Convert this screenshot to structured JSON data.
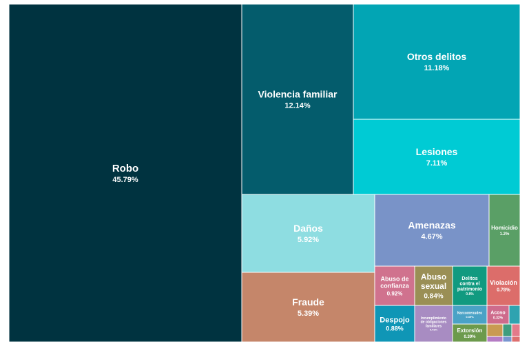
{
  "chart_data": {
    "type": "treemap",
    "title": "",
    "unit": "%",
    "items": [
      {
        "name": "Robo",
        "label": "45.79%",
        "value": 45.79,
        "color": "#003340"
      },
      {
        "name": "Violencia familiar",
        "label": "12.14%",
        "value": 12.14,
        "color": "#045c6c"
      },
      {
        "name": "Otros delitos",
        "label": "11.18%",
        "value": 11.18,
        "color": "#02a5b4"
      },
      {
        "name": "Lesiones",
        "label": "7.11%",
        "value": 7.11,
        "color": "#00cbd4"
      },
      {
        "name": "Daños",
        "label": "5.92%",
        "value": 5.92,
        "color": "#8edde1"
      },
      {
        "name": "Fraude",
        "label": "5.39%",
        "value": 5.39,
        "color": "#c5866a"
      },
      {
        "name": "Amenazas",
        "label": "4.67%",
        "value": 4.67,
        "color": "#7993c8"
      },
      {
        "name": "Homicidio",
        "label": "1.2%",
        "value": 1.2,
        "color": "#5a9f66"
      },
      {
        "name": "Abuso de confianza",
        "label": "0.92%",
        "value": 0.92,
        "color": "#d0728e"
      },
      {
        "name": "Abuso sexual",
        "label": "0.84%",
        "value": 0.84,
        "color": "#9a8f55"
      },
      {
        "name": "Delitos contra el patrimonio",
        "label": "0.8%",
        "value": 0.8,
        "color": "#119a80"
      },
      {
        "name": "Violación",
        "label": "0.78%",
        "value": 0.78,
        "color": "#dc6d6a"
      },
      {
        "name": "Despojo",
        "label": "0.88%",
        "value": 0.88,
        "color": "#0f96b6"
      },
      {
        "name": "Incumplimiento de obligaciones familiares",
        "label": "0.43%",
        "value": 0.43,
        "color": "#a88cc2"
      },
      {
        "name": "Narcomenudeo",
        "label": "0.39%",
        "value": 0.39,
        "color": "#4aa2c6"
      },
      {
        "name": "Acoso",
        "label": "0.32%",
        "value": 0.32,
        "color": "#ce6b8c"
      },
      {
        "name": "Extorsión",
        "label": "0.39%",
        "value": 0.39,
        "color": "#6c9a4c"
      },
      {
        "name": "",
        "label": "",
        "value": 0.12,
        "color": "#2fa3b0"
      },
      {
        "name": "",
        "label": "",
        "value": 0.1,
        "color": "#e37a8a"
      },
      {
        "name": "",
        "label": "",
        "value": 0.1,
        "color": "#c99a52"
      },
      {
        "name": "",
        "label": "",
        "value": 0.08,
        "color": "#3f9d7e"
      },
      {
        "name": "",
        "label": "",
        "value": 0.06,
        "color": "#b57cc4"
      },
      {
        "name": "",
        "label": "",
        "value": 0.05,
        "color": "#7896d0"
      },
      {
        "name": "",
        "label": "",
        "value": 0.04,
        "color": "#de6f6f"
      }
    ]
  }
}
